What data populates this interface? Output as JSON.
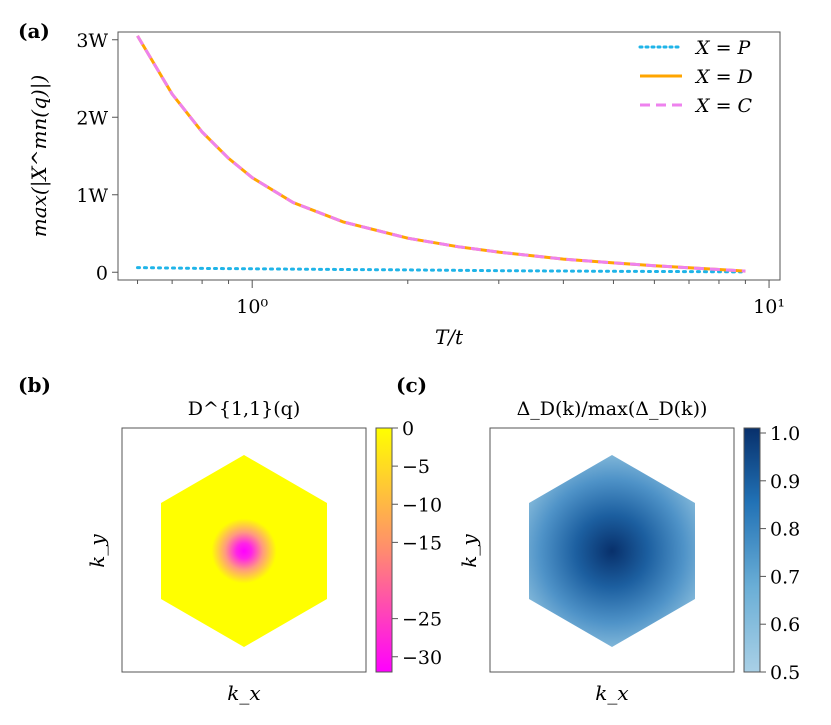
{
  "chart_data": [
    {
      "panel_label": "(a)",
      "type": "line",
      "xlabel": "T/t",
      "ylabel": "max(|X^mn(q)|)",
      "xscale": "log",
      "xlim": [
        0.55,
        10.5
      ],
      "ylim": [
        -0.1,
        3.1
      ],
      "x_ticks": [
        {
          "value": 1,
          "label": "10⁰"
        },
        {
          "value": 10,
          "label": "10¹"
        }
      ],
      "y_ticks": [
        {
          "value": 0,
          "label": "0"
        },
        {
          "value": 1,
          "label": "1W"
        },
        {
          "value": 2,
          "label": "2W"
        },
        {
          "value": 3,
          "label": "3W"
        }
      ],
      "legend_position": "top-right",
      "series": [
        {
          "name": "X = P",
          "color": "#1fb4e8",
          "style": "dotted",
          "x": [
            0.6,
            0.8,
            1.0,
            1.5,
            2.0,
            3.0,
            5.0,
            7.0,
            9.0
          ],
          "y": [
            0.06,
            0.05,
            0.045,
            0.035,
            0.03,
            0.02,
            0.012,
            0.008,
            0.005
          ]
        },
        {
          "name": "X = D",
          "color": "#ffa500",
          "style": "solid",
          "x": [
            0.6,
            0.7,
            0.8,
            0.9,
            1.0,
            1.2,
            1.5,
            2.0,
            2.5,
            3.0,
            4.0,
            5.0,
            6.0,
            7.0,
            8.0,
            9.0
          ],
          "y": [
            3.05,
            2.3,
            1.81,
            1.47,
            1.22,
            0.9,
            0.65,
            0.44,
            0.33,
            0.26,
            0.17,
            0.12,
            0.085,
            0.058,
            0.036,
            0.015
          ]
        },
        {
          "name": "X = C",
          "color": "#ee82ee",
          "style": "dashed",
          "x": [
            0.6,
            0.7,
            0.8,
            0.9,
            1.0,
            1.2,
            1.5,
            2.0,
            2.5,
            3.0,
            4.0,
            5.0,
            6.0,
            7.0,
            8.0,
            9.0
          ],
          "y": [
            3.05,
            2.3,
            1.81,
            1.47,
            1.22,
            0.9,
            0.65,
            0.44,
            0.33,
            0.26,
            0.17,
            0.12,
            0.085,
            0.058,
            0.036,
            0.015
          ]
        }
      ]
    },
    {
      "panel_label": "(b)",
      "type": "heatmap",
      "title": "D^{1,1}(q)",
      "xlabel": "k_x",
      "ylabel": "k_y",
      "shape": "hexagon",
      "colorbar": {
        "min": -32,
        "max": 0,
        "colors": [
          "#ff00ff",
          "#ff8c6e",
          "#ffff00"
        ],
        "ticks": [
          {
            "value": 0,
            "label": "0"
          },
          {
            "value": -5,
            "label": "−5"
          },
          {
            "value": -10,
            "label": "−10"
          },
          {
            "value": -15,
            "label": "−15"
          },
          {
            "value": -25,
            "label": "−25"
          },
          {
            "value": -30,
            "label": "−30"
          }
        ]
      },
      "center_value": -32,
      "edge_value": 0
    },
    {
      "panel_label": "(c)",
      "type": "heatmap",
      "title": "Δ_D(k)/max(Δ_D(k))",
      "xlabel": "k_x",
      "ylabel": "k_y",
      "shape": "hexagon",
      "colorbar": {
        "min": 0.5,
        "max": 1.0,
        "colors": [
          "#a9d0e6",
          "#6aaed6",
          "#2171b5",
          "#08306b"
        ],
        "ticks": [
          {
            "value": 1.0,
            "label": "1.0"
          },
          {
            "value": 0.9,
            "label": "0.9"
          },
          {
            "value": 0.8,
            "label": "0.8"
          },
          {
            "value": 0.7,
            "label": "0.7"
          },
          {
            "value": 0.6,
            "label": "0.6"
          },
          {
            "value": 0.5,
            "label": "0.5"
          }
        ]
      },
      "center_value": 1.0,
      "edge_value": 0.5
    }
  ]
}
